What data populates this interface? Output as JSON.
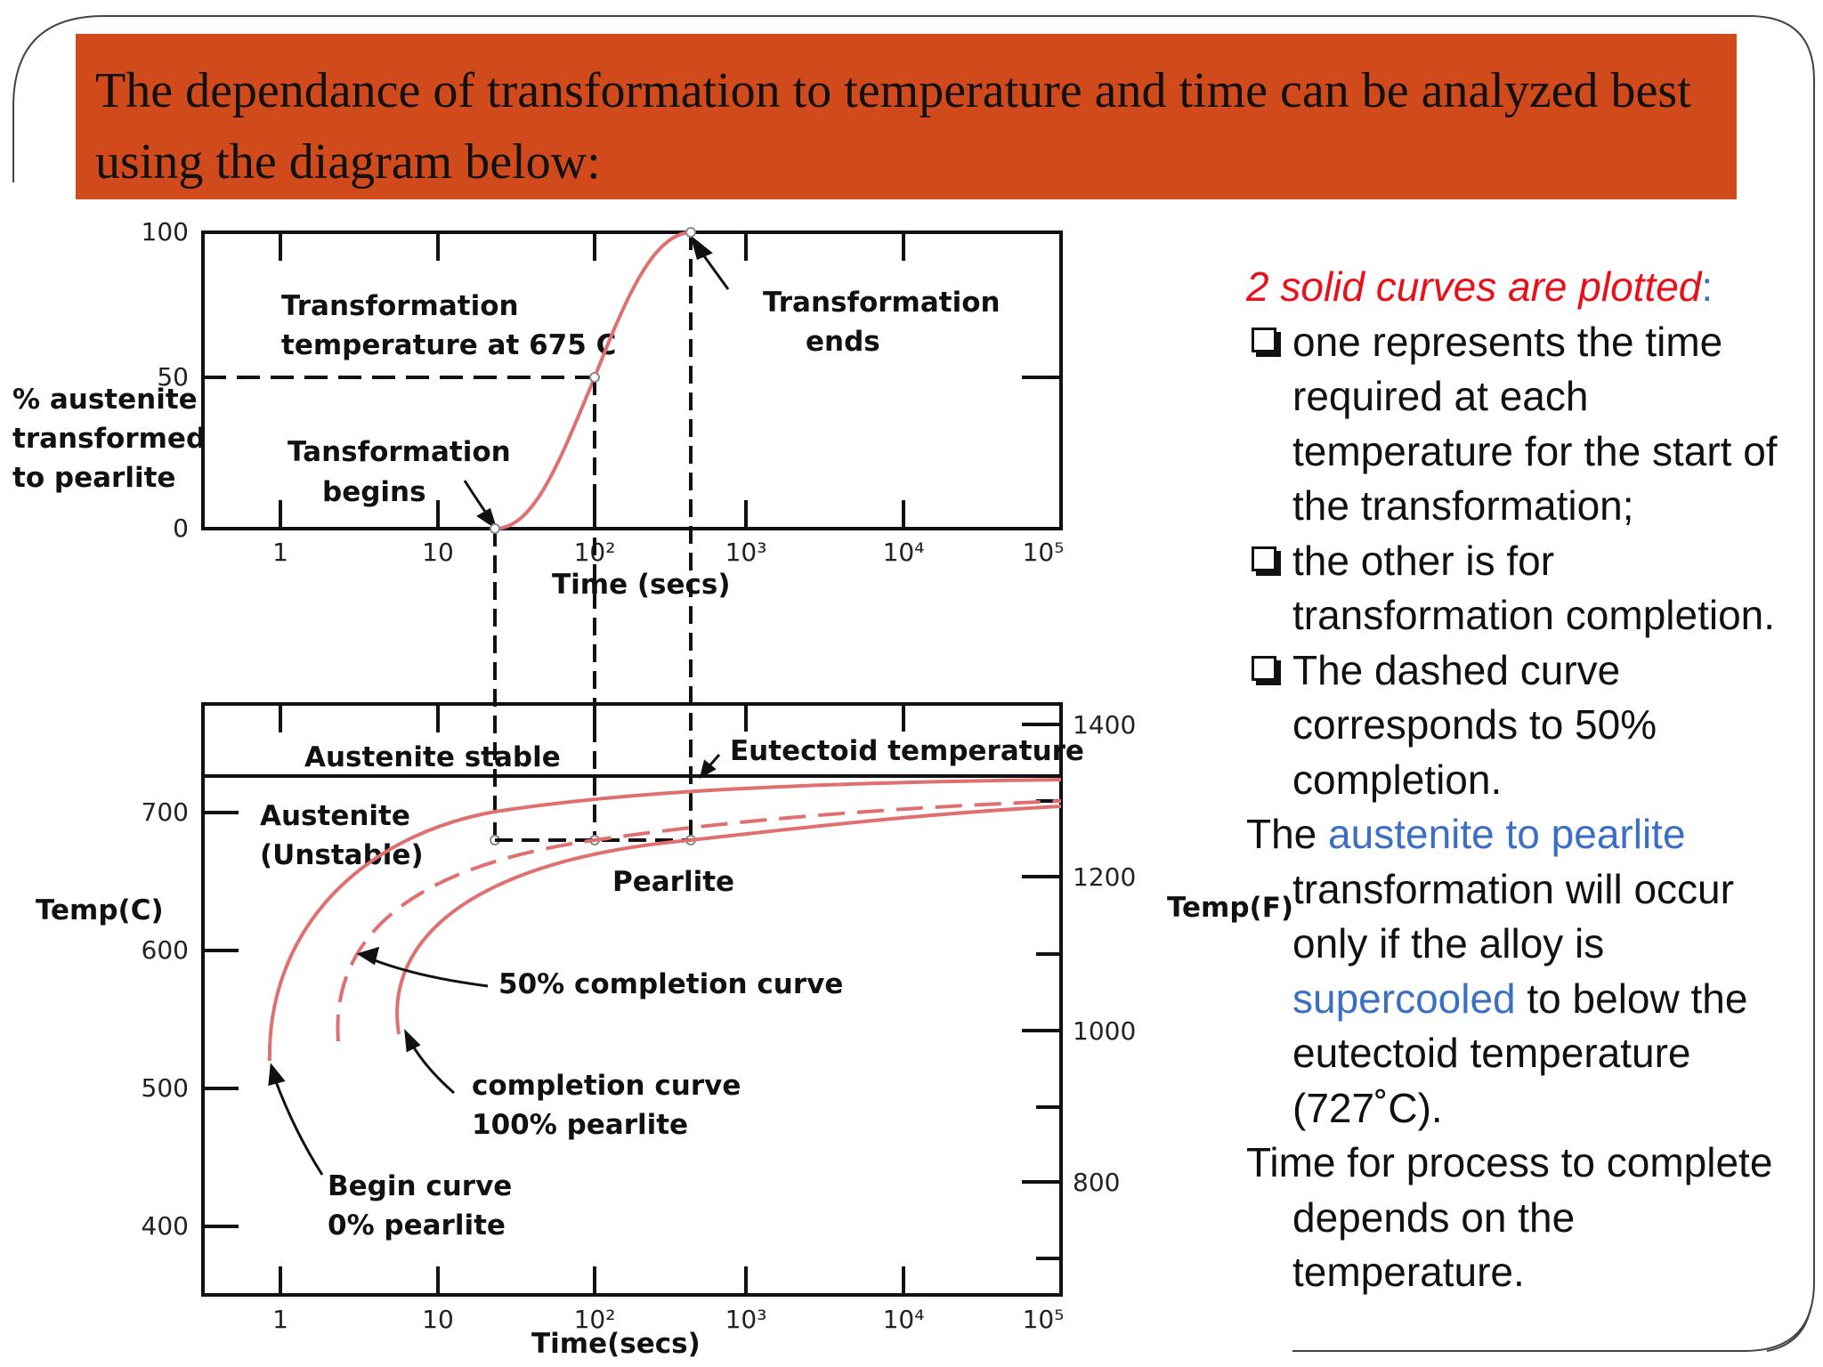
{
  "title": "The dependance of transformation to temperature and time can be analyzed best using the diagram below:",
  "diagram": {
    "top_plot": {
      "y_axis_label_lines": [
        "% austenite",
        "transformed",
        "to pearlite"
      ],
      "y_ticks": [
        "100",
        "50",
        "0"
      ],
      "x_ticks": [
        "1",
        "10",
        "10²",
        "10³",
        "10⁴",
        "10⁵"
      ],
      "x_axis_label": "Time (secs)",
      "annotation_temperature_lines": [
        "Transformation",
        "temperature at 675 C"
      ],
      "annotation_begins_lines": [
        "Tansformation",
        "begins"
      ],
      "annotation_ends_lines": [
        "Transformation",
        "ends"
      ]
    },
    "bottom_plot": {
      "y_left_label": "Temp(C)",
      "y_left_ticks": [
        "700",
        "600",
        "500",
        "400"
      ],
      "y_right_label": "Temp(F)",
      "y_right_ticks": [
        "1400",
        "1200",
        "1000",
        "800"
      ],
      "x_ticks": [
        "1",
        "10",
        "10²",
        "10³",
        "10⁴",
        "10⁵"
      ],
      "x_axis_label": "Time(secs)",
      "region_austenite_stable": "Austenite stable",
      "eutectoid_label": "Eutectoid temperature",
      "austenite_unstable_lines": [
        "Austenite",
        "(Unstable)"
      ],
      "pearlite_label": "Pearlite",
      "fifty_percent_label": "50% completion curve",
      "completion_lines": [
        "completion curve",
        "100% pearlite"
      ],
      "begin_curve_lines": [
        "Begin curve",
        "0% pearlite"
      ]
    },
    "curve_color": "#e07070"
  },
  "notes": {
    "heading_red": "2 solid curves are plotted",
    "heading_colon": ":",
    "bullet_1": "one represents the time required at each temperature for the start of the transformation;",
    "bullet_2": "the other is for transformation completion.",
    "bullet_3": "The dashed curve corresponds to 50% completion.",
    "para1_a": "The ",
    "para1_blue1": "austenite to pearlite",
    "para1_b": " transformation will occur only if the alloy is ",
    "para1_blue2": "supercooled",
    "para1_c": " to below the eutectoid temperature (727˚C).",
    "para2": "Time for process to complete depends on the temperature."
  }
}
